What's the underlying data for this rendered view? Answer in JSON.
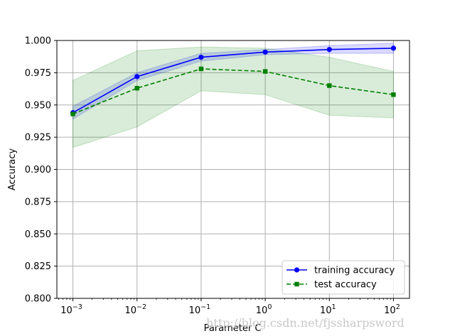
{
  "chart_data": {
    "type": "line",
    "xscale": "log",
    "x": [
      0.001,
      0.01,
      0.1,
      1,
      10,
      100
    ],
    "x_tick_labels": [
      {
        "base": "10",
        "exp": "−3"
      },
      {
        "base": "10",
        "exp": "−2"
      },
      {
        "base": "10",
        "exp": "−1"
      },
      {
        "base": "10",
        "exp": "0"
      },
      {
        "base": "10",
        "exp": "1"
      },
      {
        "base": "10",
        "exp": "2"
      }
    ],
    "y_tick_labels": [
      "0.800",
      "0.825",
      "0.850",
      "0.875",
      "0.900",
      "0.925",
      "0.950",
      "0.975",
      "1.000"
    ],
    "y_ticks": [
      0.8,
      0.825,
      0.85,
      0.875,
      0.9,
      0.925,
      0.95,
      0.975,
      1.0
    ],
    "xlabel": "Parameter C",
    "ylabel": "Accuracy",
    "ylim": [
      0.8,
      1.0
    ],
    "grid": true,
    "legend_position": "lower-right",
    "series": [
      {
        "name": "training accuracy",
        "color": "#0000ff",
        "band_color": "#0000ff",
        "band_opacity": 0.15,
        "linestyle": "solid",
        "marker": "circle",
        "values": [
          0.944,
          0.972,
          0.987,
          0.991,
          0.993,
          0.994
        ],
        "upper": [
          0.949,
          0.975,
          0.99,
          0.993,
          0.996,
          0.998
        ],
        "lower": [
          0.939,
          0.969,
          0.984,
          0.989,
          0.99,
          0.99
        ]
      },
      {
        "name": "test accuracy",
        "color": "#008000",
        "band_color": "#008000",
        "band_opacity": 0.15,
        "linestyle": "dashed",
        "marker": "square",
        "values": [
          0.943,
          0.963,
          0.978,
          0.976,
          0.965,
          0.958
        ],
        "upper": [
          0.969,
          0.992,
          0.995,
          0.994,
          0.987,
          0.976
        ],
        "lower": [
          0.917,
          0.933,
          0.961,
          0.958,
          0.942,
          0.94
        ]
      }
    ]
  },
  "watermark": "http://blog.csdn.net/fjssharpsword"
}
